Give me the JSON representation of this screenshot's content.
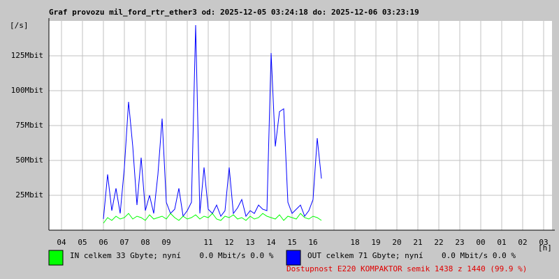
{
  "chart_data": {
    "type": "line",
    "title": "Graf provozu mil_ford_rtr_ether3 od: 2025-12-05 03:24:18 do: 2025-12-06 03:23:19",
    "y_unit": "[/s]",
    "x_unit": "[h]",
    "footnote": "Dostupnost E220 KOMPAKTOR semik 1438 z 1440 (99.9 %)",
    "grid": true,
    "xlim": [
      3.4,
      27.4
    ],
    "ylim": [
      0,
      150
    ],
    "yticks": [
      {
        "value": 25,
        "label": "25Mbit"
      },
      {
        "value": 50,
        "label": "50Mbit"
      },
      {
        "value": 75,
        "label": "75Mbit"
      },
      {
        "value": 100,
        "label": "100Mbit"
      },
      {
        "value": 125,
        "label": "125Mbit"
      }
    ],
    "xticks": [
      {
        "value": 4,
        "label": "04"
      },
      {
        "value": 5,
        "label": "05"
      },
      {
        "value": 6,
        "label": "06"
      },
      {
        "value": 7,
        "label": "07"
      },
      {
        "value": 8,
        "label": "08"
      },
      {
        "value": 9,
        "label": "09"
      },
      {
        "value": 10,
        "label": null
      },
      11,
      12,
      13,
      14,
      15,
      16,
      {
        "value": 17,
        "label": null
      },
      18,
      19,
      20,
      21,
      22,
      23,
      {
        "value": 24,
        "label": "00"
      },
      {
        "value": 25,
        "label": "01"
      },
      {
        "value": 26,
        "label": "02"
      },
      {
        "value": 27,
        "label": "03"
      }
    ],
    "x": [
      6.0,
      6.2,
      6.4,
      6.6,
      6.8,
      7.0,
      7.2,
      7.4,
      7.6,
      7.8,
      8.0,
      8.2,
      8.4,
      8.6,
      8.8,
      9.0,
      9.2,
      9.4,
      9.6,
      9.8,
      10.0,
      10.2,
      10.4,
      10.6,
      10.8,
      11.0,
      11.2,
      11.4,
      11.6,
      11.8,
      12.0,
      12.2,
      12.4,
      12.6,
      12.8,
      13.0,
      13.2,
      13.4,
      13.6,
      13.8,
      14.0,
      14.2,
      14.4,
      14.6,
      14.8,
      15.0,
      15.2,
      15.4,
      15.6,
      15.8,
      16.0,
      16.2,
      16.4
    ],
    "series": [
      {
        "name": "IN celkem 33 Gbyte; nyní    0.0 Mbit/s 0.0 %",
        "color": "#00ff00",
        "values": [
          5,
          9,
          7,
          10,
          8,
          9,
          12,
          8,
          10,
          9,
          7,
          11,
          8,
          9,
          10,
          8,
          12,
          9,
          7,
          10,
          8,
          9,
          11,
          8,
          10,
          9,
          12,
          8,
          7,
          10,
          9,
          11,
          8,
          9,
          7,
          10,
          8,
          9,
          12,
          10,
          9,
          8,
          11,
          7,
          10,
          9,
          8,
          12,
          9,
          8,
          10,
          9,
          7
        ]
      },
      {
        "name": "OUT celkem 71 Gbyte; nyní    0.0 Mbit/s 0.0 %",
        "color": "#0000ff",
        "values": [
          8,
          40,
          14,
          30,
          12,
          45,
          92,
          60,
          18,
          52,
          14,
          25,
          12,
          40,
          80,
          20,
          12,
          15,
          30,
          10,
          14,
          20,
          147,
          12,
          45,
          15,
          12,
          18,
          10,
          14,
          45,
          12,
          16,
          22,
          10,
          14,
          12,
          18,
          15,
          14,
          127,
          60,
          85,
          87,
          20,
          12,
          15,
          18,
          10,
          14,
          22,
          66,
          37
        ]
      }
    ]
  }
}
